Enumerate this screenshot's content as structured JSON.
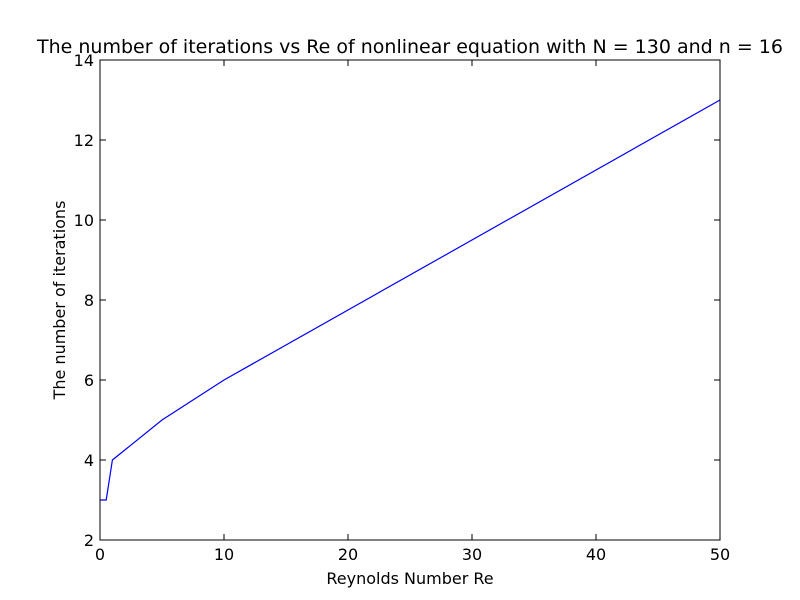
{
  "chart_data": {
    "type": "line",
    "title": "The number of iterations vs Re of nonlinear equation with N = 130 and n = 16",
    "xlabel": "Reynolds Number Re",
    "ylabel": "The number of iterations",
    "xlim": [
      0,
      50
    ],
    "ylim": [
      2,
      14
    ],
    "xticks": [
      0,
      10,
      20,
      30,
      40,
      50
    ],
    "yticks": [
      2,
      4,
      6,
      8,
      10,
      12,
      14
    ],
    "grid": false,
    "legend": "none",
    "series": [
      {
        "color": "#0000ff",
        "x": [
          0,
          0.5,
          1,
          5,
          10,
          50
        ],
        "y": [
          3,
          3,
          4,
          5,
          6,
          13
        ]
      }
    ]
  }
}
